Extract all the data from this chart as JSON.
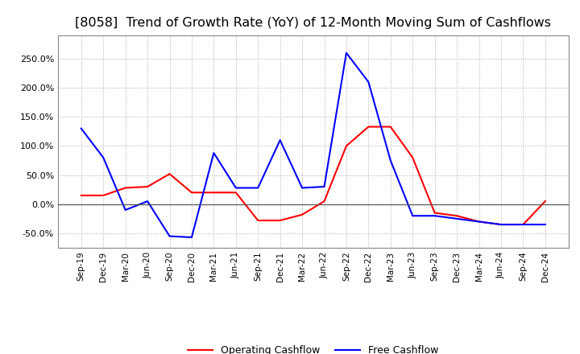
{
  "title": "[8058]  Trend of Growth Rate (YoY) of 12-Month Moving Sum of Cashflows",
  "x_labels": [
    "Sep-19",
    "Dec-19",
    "Mar-20",
    "Jun-20",
    "Sep-20",
    "Dec-20",
    "Mar-21",
    "Jun-21",
    "Sep-21",
    "Dec-21",
    "Mar-22",
    "Jun-22",
    "Sep-22",
    "Dec-22",
    "Mar-23",
    "Jun-23",
    "Sep-23",
    "Dec-23",
    "Mar-24",
    "Jun-24",
    "Sep-24",
    "Dec-24"
  ],
  "operating_cashflow": [
    15,
    15,
    28,
    30,
    52,
    20,
    20,
    20,
    -28,
    -28,
    -18,
    5,
    100,
    133,
    133,
    80,
    -15,
    -20,
    -30,
    -35,
    -35,
    5
  ],
  "free_cashflow": [
    130,
    80,
    -10,
    5,
    -55,
    -57,
    88,
    28,
    28,
    110,
    28,
    30,
    260,
    210,
    75,
    -20,
    -20,
    -25,
    -30,
    -35,
    -35,
    -35
  ],
  "operating_color": "#FF0000",
  "free_color": "#0000FF",
  "ylim": [
    -75,
    290
  ],
  "yticks": [
    -50,
    0,
    50,
    100,
    150,
    200,
    250
  ],
  "background_color": "#FFFFFF",
  "grid_color": "#AAAAAA",
  "title_fontsize": 11.5
}
